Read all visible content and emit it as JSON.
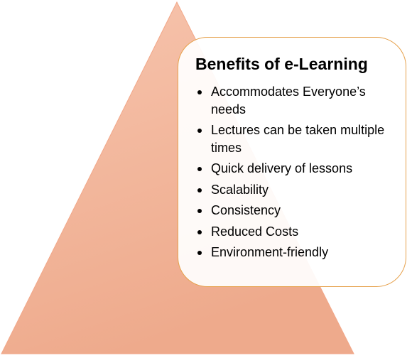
{
  "colors": {
    "triangle_top": "#F7C5AE",
    "triangle_bottom": "#EEAA8C",
    "triangle_stroke": "#F2A788",
    "panel_border": "#E6A14C",
    "panel_fill": "#FFFFFF",
    "text": "#000000"
  },
  "panel": {
    "title": "Benefits of e-Learning",
    "items": [
      {
        "icon": "bullet-icon",
        "label": "Accommodates Everyone’s needs"
      },
      {
        "icon": "bullet-icon",
        "label": "Lectures can be taken multiple times"
      },
      {
        "icon": "bullet-icon",
        "label": "Quick delivery of lessons"
      },
      {
        "icon": "bullet-icon",
        "label": "Scalability"
      },
      {
        "icon": "bullet-icon",
        "label": "Consistency"
      },
      {
        "icon": "bullet-icon",
        "label": "Reduced Costs"
      },
      {
        "icon": "bullet-icon",
        "label": "Environment-friendly"
      }
    ]
  }
}
